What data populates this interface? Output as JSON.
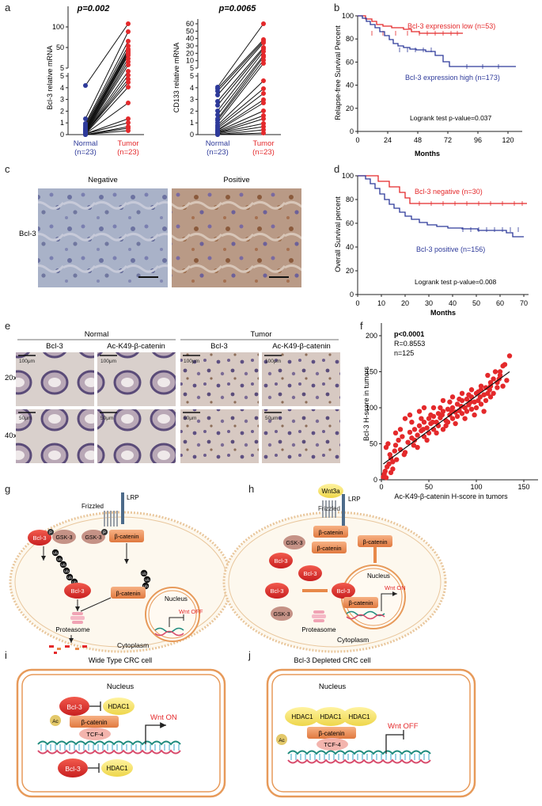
{
  "colors": {
    "red": "#e4292b",
    "blue": "#2e3a9a",
    "orange": "#e8894a",
    "yellow": "#f2e36c",
    "cell": "#e79a5a",
    "dna1": "#1f8b7d",
    "dna2": "#d84a6b"
  },
  "panel_labels": {
    "a": "a",
    "b": "b",
    "c": "c",
    "d": "d",
    "e": "e",
    "f": "f",
    "g": "g",
    "h": "h",
    "i": "i",
    "j": "j"
  },
  "a": {
    "left": {
      "p": "p=0.002",
      "ylabel": "Bcl-3 relative mRNA",
      "ticks_top": [
        "100",
        "50",
        "5"
      ],
      "ticks_bottom": [
        "5",
        "4",
        "3",
        "2",
        "1",
        "0"
      ],
      "xcats": [
        {
          "name": "Normal",
          "n": "(n=23)"
        },
        {
          "name": "Tumor",
          "n": "(n=23)"
        }
      ]
    },
    "right": {
      "p": "p=0.0065",
      "ylabel": "CD133 relative mRNA",
      "ticks_top": [
        "60",
        "50",
        "40",
        "30",
        "20",
        "10",
        "5"
      ],
      "ticks_bottom": [
        "5",
        "4",
        "3",
        "2",
        "1",
        "0"
      ],
      "xcats": [
        {
          "name": "Normal",
          "n": "(n=23)"
        },
        {
          "name": "Tumor",
          "n": "(n=23)"
        }
      ]
    }
  },
  "b": {
    "ylabel": "Relapse-free Survival Percent",
    "xlabel": "Months",
    "yticks": [
      "100",
      "80",
      "60",
      "40",
      "20",
      "0"
    ],
    "xticks": [
      "0",
      "24",
      "48",
      "72",
      "96",
      "120"
    ],
    "low": "Bcl-3 expression low (n=53)",
    "high": "Bcl-3 expression high (n=173)",
    "logrank": "Logrank test p-value=0.037"
  },
  "c": {
    "negative": "Negative",
    "positive": "Positive",
    "row": "Bcl-3"
  },
  "d": {
    "ylabel": "Overall Survival percent",
    "xlabel": "Months",
    "yticks": [
      "100",
      "80",
      "60",
      "40",
      "20",
      "0"
    ],
    "xticks": [
      "0",
      "10",
      "20",
      "30",
      "40",
      "50",
      "60",
      "70"
    ],
    "neg": "Bcl-3 negative (n=30)",
    "pos": "Bcl-3 positive (n=156)",
    "logrank": "Logrank test p-value=0.008"
  },
  "e": {
    "normal": "Normal",
    "tumor": "Tumor",
    "cols": [
      "Bcl-3",
      "Ac-K49-β-catenin",
      "Bcl-3",
      "Ac-K49-β-catenin"
    ],
    "rows": [
      "20x",
      "40x"
    ],
    "scale20": "100μm",
    "scale40": "50μm"
  },
  "chart_data": {
    "type": "scatter",
    "xlabel": "Ac-K49-β-catenin H-score in tumors",
    "ylabel": "Bcl-3 H-score in tumors",
    "xlim": [
      0,
      150
    ],
    "ylim": [
      0,
      200
    ],
    "xticks": [
      "0",
      "50",
      "100",
      "150"
    ],
    "yticks": [
      "0",
      "50",
      "100",
      "150",
      "200"
    ],
    "stats": {
      "p": "p<0.0001",
      "R": "R=0.8553",
      "n": "n=125"
    },
    "points": [
      [
        2,
        4
      ],
      [
        3,
        8
      ],
      [
        5,
        3
      ],
      [
        4,
        12
      ],
      [
        6,
        18
      ],
      [
        8,
        22
      ],
      [
        10,
        30
      ],
      [
        12,
        25
      ],
      [
        14,
        40
      ],
      [
        5,
        45
      ],
      [
        7,
        50
      ],
      [
        9,
        35
      ],
      [
        15,
        48
      ],
      [
        18,
        55
      ],
      [
        20,
        42
      ],
      [
        22,
        60
      ],
      [
        25,
        38
      ],
      [
        28,
        52
      ],
      [
        30,
        66
      ],
      [
        32,
        58
      ],
      [
        35,
        70
      ],
      [
        38,
        62
      ],
      [
        40,
        75
      ],
      [
        42,
        68
      ],
      [
        45,
        80
      ],
      [
        48,
        72
      ],
      [
        50,
        85
      ],
      [
        52,
        78
      ],
      [
        55,
        88
      ],
      [
        58,
        80
      ],
      [
        60,
        92
      ],
      [
        62,
        86
      ],
      [
        65,
        95
      ],
      [
        68,
        82
      ],
      [
        70,
        98
      ],
      [
        72,
        90
      ],
      [
        75,
        100
      ],
      [
        78,
        94
      ],
      [
        80,
        105
      ],
      [
        82,
        96
      ],
      [
        85,
        110
      ],
      [
        88,
        100
      ],
      [
        90,
        112
      ],
      [
        92,
        104
      ],
      [
        95,
        115
      ],
      [
        98,
        108
      ],
      [
        100,
        120
      ],
      [
        102,
        110
      ],
      [
        105,
        125
      ],
      [
        108,
        118
      ],
      [
        110,
        128
      ],
      [
        112,
        120
      ],
      [
        115,
        130
      ],
      [
        118,
        140
      ],
      [
        120,
        150
      ],
      [
        122,
        135
      ],
      [
        125,
        145
      ],
      [
        128,
        158
      ],
      [
        130,
        160
      ],
      [
        135,
        172
      ],
      [
        20,
        70
      ],
      [
        25,
        85
      ],
      [
        30,
        90
      ],
      [
        15,
        65
      ],
      [
        40,
        95
      ],
      [
        45,
        100
      ],
      [
        50,
        65
      ],
      [
        55,
        70
      ],
      [
        60,
        75
      ],
      [
        65,
        70
      ],
      [
        70,
        80
      ],
      [
        75,
        85
      ],
      [
        80,
        88
      ],
      [
        85,
        92
      ],
      [
        90,
        95
      ],
      [
        95,
        98
      ],
      [
        100,
        100
      ],
      [
        105,
        105
      ],
      [
        110,
        110
      ],
      [
        115,
        115
      ],
      [
        35,
        55
      ],
      [
        45,
        60
      ],
      [
        55,
        100
      ],
      [
        65,
        110
      ],
      [
        75,
        115
      ],
      [
        85,
        120
      ],
      [
        95,
        125
      ],
      [
        105,
        130
      ],
      [
        115,
        135
      ],
      [
        125,
        150
      ],
      [
        38,
        45
      ],
      [
        48,
        55
      ],
      [
        58,
        65
      ],
      [
        68,
        75
      ],
      [
        78,
        78
      ],
      [
        88,
        85
      ],
      [
        98,
        90
      ],
      [
        108,
        95
      ],
      [
        118,
        120
      ],
      [
        128,
        130
      ],
      [
        10,
        10
      ],
      [
        12,
        15
      ],
      [
        16,
        28
      ],
      [
        24,
        35
      ],
      [
        34,
        48
      ],
      [
        44,
        70
      ],
      [
        54,
        80
      ],
      [
        64,
        90
      ],
      [
        74,
        95
      ],
      [
        84,
        102
      ],
      [
        94,
        108
      ],
      [
        104,
        115
      ],
      [
        114,
        125
      ],
      [
        124,
        140
      ],
      [
        32,
        80
      ],
      [
        42,
        85
      ],
      [
        52,
        90
      ],
      [
        62,
        100
      ],
      [
        72,
        108
      ],
      [
        82,
        112
      ],
      [
        92,
        118
      ],
      [
        102,
        122
      ],
      [
        112,
        145
      ],
      [
        122,
        128
      ],
      [
        132,
        138
      ]
    ]
  },
  "g": {
    "frizzled": "Frizzled",
    "lrp": "LRP",
    "bcl3": "Bcl-3",
    "gsk3": "GSK-3",
    "bcat": "β-catenin",
    "p": "P",
    "ub": "Ub",
    "proteasome": "Proteasome",
    "nucleus": "Nucleus",
    "wnt": "Wnt OFF",
    "cytoplasm": "Cytoplasm"
  },
  "h": {
    "wnt3a": "Wnt3a",
    "frizzled": "Frizzled",
    "lrp": "LRP",
    "bcl3": "Bcl-3",
    "gsk3": "GSK-3",
    "bcat": "β-catenin",
    "proteasome": "Proteasome",
    "nucleus": "Nucleus",
    "wnt": "Wnt ON",
    "cytoplasm": "Cytoplasm"
  },
  "i": {
    "title": "Wide Type CRC cell",
    "nucleus": "Nucleus",
    "bcl3": "Bcl-3",
    "hdac1": "HDAC1",
    "ac": "Ac",
    "bcat": "β-catenin",
    "tcf4": "TCF-4",
    "wnt": "Wnt ON"
  },
  "j": {
    "title": "Bcl-3 Depleted CRC cell",
    "nucleus": "Nucleus",
    "hdac1": "HDAC1",
    "ac": "Ac",
    "bcat": "β-catenin",
    "tcf4": "TCF-4",
    "wnt": "Wnt OFF"
  }
}
